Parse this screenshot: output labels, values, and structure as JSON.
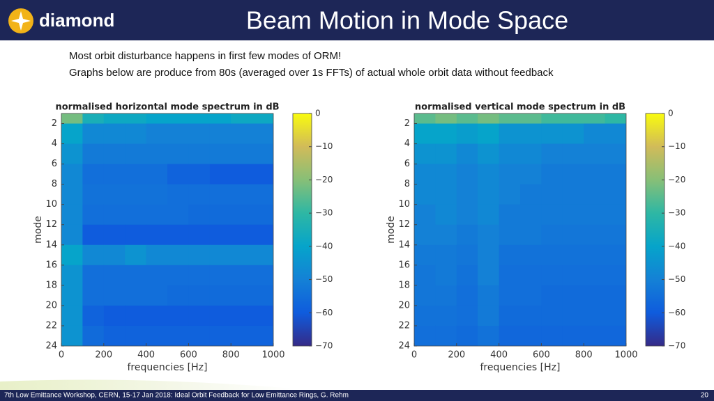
{
  "header": {
    "logo": "diamond",
    "title": "Beam Motion in Mode Space"
  },
  "bullets": [
    "Most orbit disturbance happens in first few modes of ORM!",
    "Graphs below are produce from 80s (averaged over 1s FFTs) of actual whole orbit data without feedback"
  ],
  "chart_data": [
    {
      "type": "heatmap",
      "title": "normalised horizontal mode spectrum in dB",
      "x_label": "frequencies [Hz]",
      "y_label": "mode",
      "x": [
        50,
        150,
        250,
        350,
        450,
        550,
        650,
        750,
        850,
        950
      ],
      "y": [
        2,
        4,
        6,
        8,
        10,
        12,
        14,
        16,
        18,
        20,
        22,
        24
      ],
      "values": [
        [
          -22,
          -35,
          -38,
          -38,
          -40,
          -40,
          -40,
          -40,
          -38,
          -38
        ],
        [
          -40,
          -48,
          -48,
          -48,
          -50,
          -50,
          -50,
          -50,
          -50,
          -50
        ],
        [
          -45,
          -52,
          -52,
          -52,
          -52,
          -52,
          -52,
          -52,
          -52,
          -52
        ],
        [
          -48,
          -55,
          -55,
          -55,
          -55,
          -58,
          -58,
          -60,
          -60,
          -60
        ],
        [
          -48,
          -54,
          -54,
          -54,
          -54,
          -55,
          -55,
          -55,
          -55,
          -55
        ],
        [
          -48,
          -55,
          -55,
          -55,
          -55,
          -55,
          -56,
          -56,
          -56,
          -56
        ],
        [
          -48,
          -60,
          -60,
          -60,
          -60,
          -60,
          -60,
          -60,
          -60,
          -60
        ],
        [
          -40,
          -48,
          -48,
          -45,
          -48,
          -48,
          -48,
          -48,
          -48,
          -48
        ],
        [
          -45,
          -55,
          -55,
          -55,
          -55,
          -55,
          -55,
          -55,
          -55,
          -55
        ],
        [
          -45,
          -55,
          -55,
          -55,
          -55,
          -56,
          -56,
          -56,
          -56,
          -56
        ],
        [
          -45,
          -58,
          -60,
          -60,
          -60,
          -60,
          -60,
          -60,
          -60,
          -60
        ],
        [
          -45,
          -56,
          -58,
          -58,
          -58,
          -58,
          -58,
          -58,
          -58,
          -58
        ]
      ],
      "xlim": [
        0,
        1000
      ],
      "xticks": [
        0,
        200,
        400,
        600,
        800,
        1000
      ],
      "ylim": [
        1,
        24
      ],
      "y_reversed": true,
      "yticks": [
        2,
        4,
        6,
        8,
        10,
        12,
        14,
        16,
        18,
        20,
        22,
        24
      ],
      "clim": [
        -70,
        0
      ],
      "cticks": [
        {
          "value": 0,
          "label": "0"
        },
        {
          "value": -10,
          "label": "−10"
        },
        {
          "value": -20,
          "label": "−20"
        },
        {
          "value": -30,
          "label": "−30"
        },
        {
          "value": -40,
          "label": "−40"
        },
        {
          "value": -50,
          "label": "−50"
        },
        {
          "value": -60,
          "label": "−60"
        },
        {
          "value": -70,
          "label": "−70"
        }
      ]
    },
    {
      "type": "heatmap",
      "title": "normalised vertical mode spectrum in dB",
      "x_label": "frequencies [Hz]",
      "y_label": "mode",
      "x": [
        50,
        150,
        250,
        350,
        450,
        550,
        650,
        750,
        850,
        950
      ],
      "y": [
        2,
        4,
        6,
        8,
        10,
        12,
        14,
        16,
        18,
        20,
        22,
        24
      ],
      "values": [
        [
          -25,
          -22,
          -25,
          -22,
          -25,
          -25,
          -28,
          -28,
          -28,
          -30
        ],
        [
          -40,
          -40,
          -42,
          -40,
          -45,
          -45,
          -45,
          -45,
          -48,
          -48
        ],
        [
          -45,
          -45,
          -48,
          -45,
          -48,
          -48,
          -50,
          -50,
          -50,
          -50
        ],
        [
          -48,
          -48,
          -50,
          -48,
          -50,
          -50,
          -52,
          -52,
          -52,
          -52
        ],
        [
          -48,
          -48,
          -50,
          -48,
          -50,
          -52,
          -52,
          -52,
          -52,
          -52
        ],
        [
          -50,
          -48,
          -50,
          -48,
          -52,
          -52,
          -52,
          -52,
          -52,
          -52
        ],
        [
          -50,
          -50,
          -52,
          -50,
          -52,
          -52,
          -53,
          -53,
          -53,
          -53
        ],
        [
          -52,
          -52,
          -53,
          -50,
          -54,
          -54,
          -54,
          -54,
          -54,
          -54
        ],
        [
          -53,
          -52,
          -54,
          -50,
          -55,
          -55,
          -55,
          -55,
          -55,
          -55
        ],
        [
          -53,
          -53,
          -55,
          -52,
          -55,
          -55,
          -56,
          -56,
          -56,
          -56
        ],
        [
          -54,
          -54,
          -55,
          -52,
          -56,
          -56,
          -56,
          -56,
          -56,
          -56
        ],
        [
          -55,
          -55,
          -56,
          -54,
          -57,
          -57,
          -57,
          -57,
          -57,
          -57
        ]
      ],
      "xlim": [
        0,
        1000
      ],
      "xticks": [
        0,
        200,
        400,
        600,
        800,
        1000
      ],
      "ylim": [
        1,
        24
      ],
      "y_reversed": true,
      "yticks": [
        2,
        4,
        6,
        8,
        10,
        12,
        14,
        16,
        18,
        20,
        22,
        24
      ],
      "clim": [
        -70,
        0
      ],
      "cticks": [
        {
          "value": 0,
          "label": "0"
        },
        {
          "value": -10,
          "label": "−10"
        },
        {
          "value": -20,
          "label": "−20"
        },
        {
          "value": -30,
          "label": "−30"
        },
        {
          "value": -40,
          "label": "−40"
        },
        {
          "value": -50,
          "label": "−50"
        },
        {
          "value": -60,
          "label": "−60"
        },
        {
          "value": -70,
          "label": "−70"
        }
      ]
    }
  ],
  "colormap": [
    "#352a87",
    "#0f5cdd",
    "#1481d6",
    "#06a4ca",
    "#2eb7a4",
    "#87bf77",
    "#d1bb59",
    "#f9fb0e"
  ],
  "footer": {
    "text": "7th Low Emittance Workshop, CERN, 15-17 Jan 2018: Ideal Orbit Feedback for Low Emittance Rings, G. Rehm",
    "page": "20"
  }
}
